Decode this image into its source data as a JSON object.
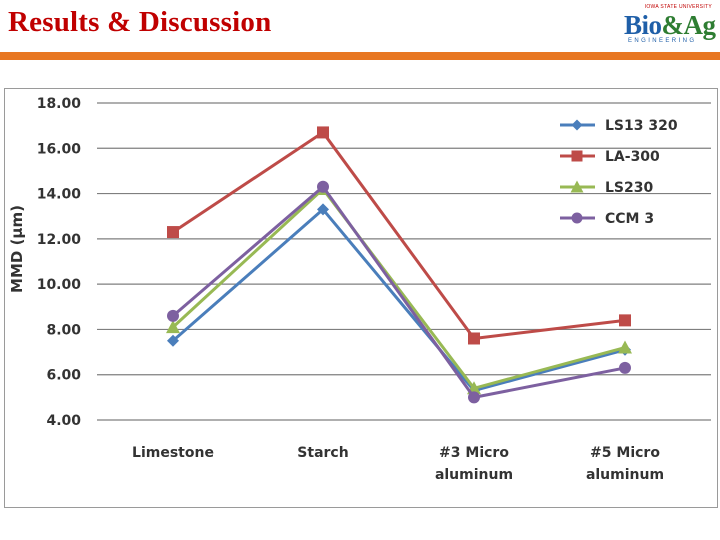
{
  "slide": {
    "title": "Results & Discussion"
  },
  "logo": {
    "university": "IOWA STATE UNIVERSITY",
    "brand_left": "Bio",
    "brand_amp": "&",
    "brand_right": "Ag",
    "subtitle": "ENGINEERING"
  },
  "colors": {
    "title": "#c00000",
    "rule": "#e87722",
    "grid": "#7f7f7f"
  },
  "chart_data": {
    "type": "line",
    "title": "",
    "xlabel": "",
    "ylabel": "MMD (μm)",
    "ylim": [
      4,
      18
    ],
    "yticks": [
      "4.00",
      "6.00",
      "8.00",
      "10.00",
      "12.00",
      "14.00",
      "16.00",
      "18.00"
    ],
    "grid": true,
    "legend_position": "top-right",
    "categories": [
      [
        "Limestone"
      ],
      [
        "Starch"
      ],
      [
        "#3 Micro",
        "aluminum"
      ],
      [
        "#5 Micro",
        "aluminum"
      ]
    ],
    "series": [
      {
        "name": "LS13 320",
        "marker": "diamond",
        "color": "#4a7ebb",
        "values": [
          7.5,
          13.3,
          5.3,
          7.1
        ]
      },
      {
        "name": "LA-300",
        "marker": "square",
        "color": "#be4b48",
        "values": [
          12.3,
          16.7,
          7.6,
          8.4
        ]
      },
      {
        "name": "LS230",
        "marker": "triangle",
        "color": "#98b954",
        "values": [
          8.1,
          14.2,
          5.4,
          7.2
        ]
      },
      {
        "name": "CCM 3",
        "marker": "circle",
        "color": "#7d60a0",
        "values": [
          8.6,
          14.3,
          5.0,
          6.3
        ]
      }
    ]
  }
}
